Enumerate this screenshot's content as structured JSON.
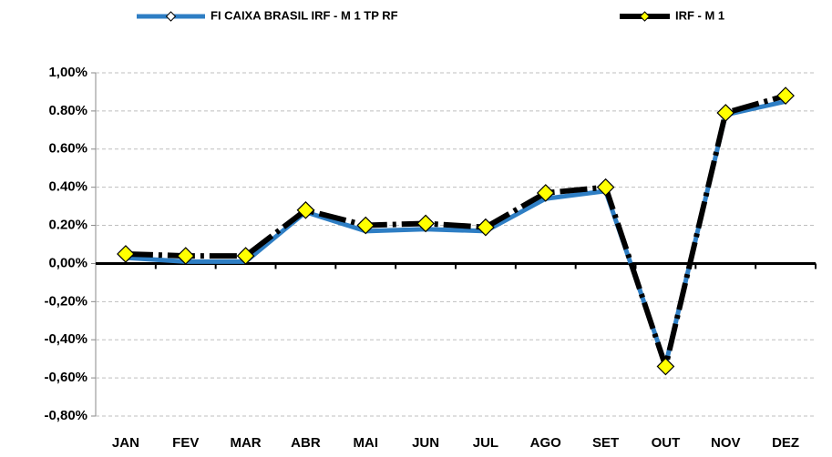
{
  "chart_data": {
    "type": "line",
    "categories": [
      "JAN",
      "FEV",
      "MAR",
      "ABR",
      "MAI",
      "JUN",
      "JUL",
      "AGO",
      "SET",
      "OUT",
      "NOV",
      "DEZ"
    ],
    "series": [
      {
        "name": "FI CAIXA BRASIL IRF - M 1 TP RF",
        "color": "#2e7ec4",
        "values": [
          0.03,
          0.01,
          0.01,
          0.27,
          0.17,
          0.18,
          0.17,
          0.34,
          0.38,
          -0.53,
          0.78,
          0.85
        ]
      },
      {
        "name": "IRF - M 1",
        "color": "#000000",
        "values": [
          0.05,
          0.04,
          0.04,
          0.28,
          0.2,
          0.21,
          0.19,
          0.37,
          0.4,
          -0.54,
          0.79,
          0.88
        ]
      }
    ],
    "ylim": [
      -0.8,
      1.0
    ],
    "yticks": [
      {
        "value": -0.8,
        "label": "-0,80%"
      },
      {
        "value": -0.6,
        "label": "-0,60%"
      },
      {
        "value": -0.4,
        "label": "-0,40%"
      },
      {
        "value": -0.2,
        "label": "-0,20%"
      },
      {
        "value": 0,
        "label": "0,00%"
      },
      {
        "value": 0.2,
        "label": "0.20%"
      },
      {
        "value": 0.4,
        "label": "0.40%"
      },
      {
        "value": 0.6,
        "label": "0.60%"
      },
      {
        "value": 0.8,
        "label": "0.80%"
      },
      {
        "value": 1.0,
        "label": "1,00%"
      }
    ],
    "grid": true,
    "legend": "top"
  }
}
